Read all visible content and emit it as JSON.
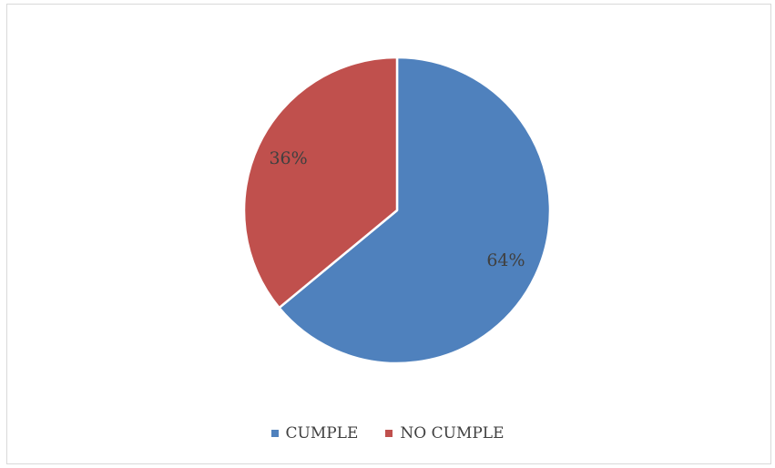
{
  "chart_data": {
    "type": "pie",
    "title": "",
    "categories": [
      "CUMPLE",
      "NO CUMPLE"
    ],
    "values": [
      64,
      36
    ],
    "data_labels": [
      "64%",
      "36%"
    ],
    "colors": [
      "#4F81BD",
      "#C0504D"
    ],
    "legend_position": "bottom",
    "start_angle_deg": 0,
    "direction": "clockwise"
  }
}
